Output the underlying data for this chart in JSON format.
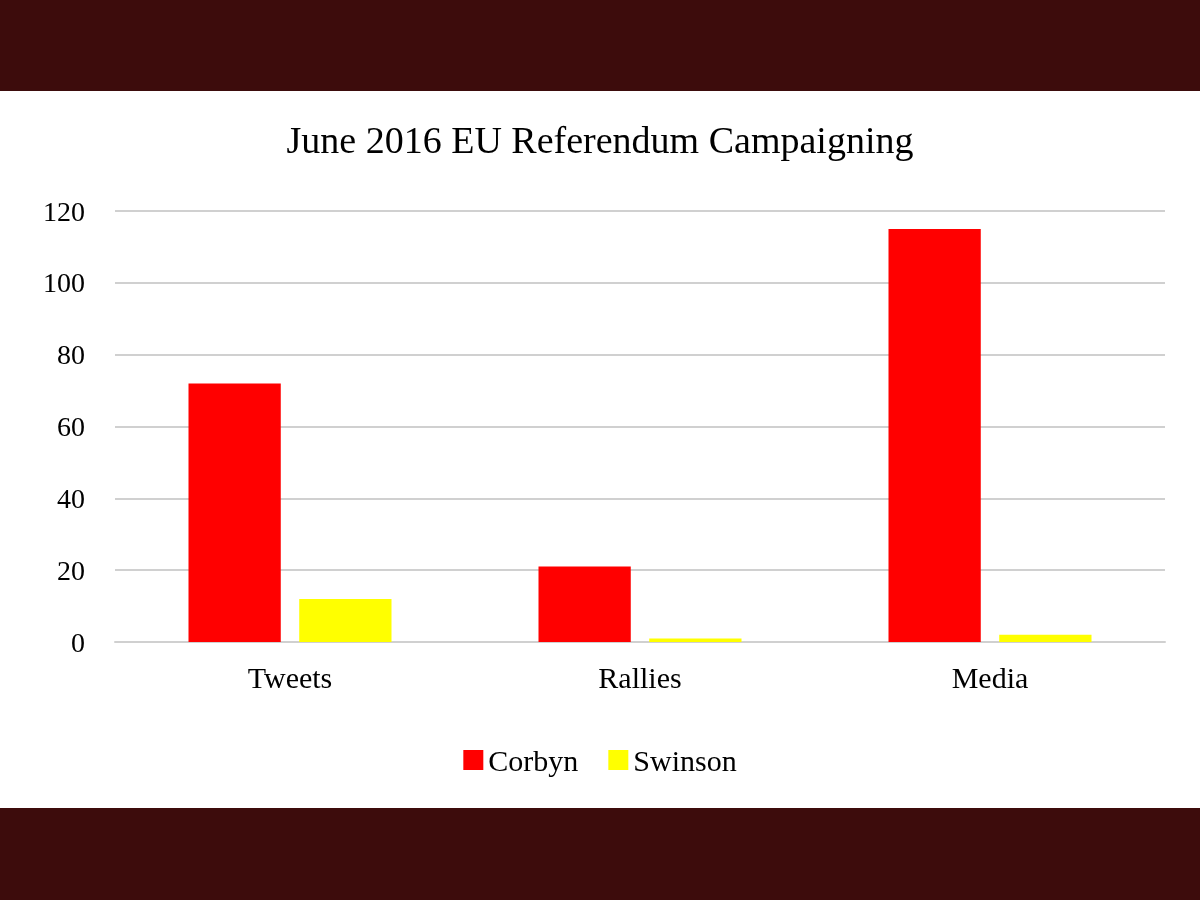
{
  "chart_data": {
    "type": "bar",
    "title": "June 2016 EU Referendum Campaigning",
    "categories": [
      "Tweets",
      "Rallies",
      "Media"
    ],
    "series": [
      {
        "name": "Corbyn",
        "color": "#ff0000",
        "values": [
          72,
          21,
          115
        ]
      },
      {
        "name": "Swinson",
        "color": "#ffff00",
        "values": [
          12,
          1,
          2
        ]
      }
    ],
    "ylim": [
      0,
      120
    ],
    "yticks": [
      0,
      20,
      40,
      60,
      80,
      100,
      120
    ],
    "grid": "y",
    "legend": "bottom"
  }
}
